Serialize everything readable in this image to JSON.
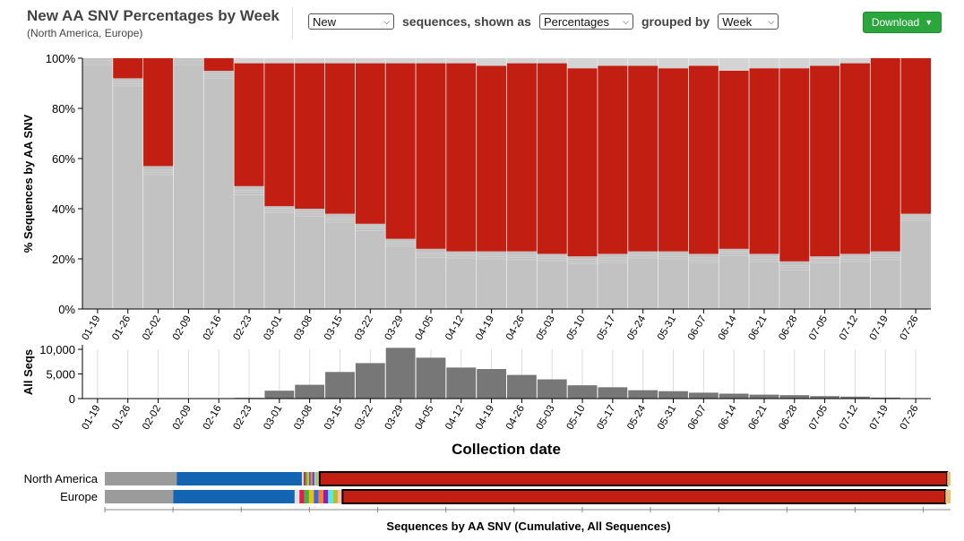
{
  "header": {
    "title": "New AA SNV Percentages by Week",
    "subtitle": "(North America, Europe)",
    "controls": {
      "mode_value": "New",
      "text1": "sequences, shown as",
      "display_value": "Percentages",
      "text2": "grouped by",
      "group_value": "Week"
    },
    "download_label": "Download"
  },
  "colors": {
    "other": "#c2c2c2",
    "snv": "#c21f12",
    "counts": "#777777",
    "lineage_grey": "#9b9b9b",
    "lineage_blue": "#1464b4"
  },
  "chart_data": [
    {
      "type": "bar",
      "stacked": true,
      "xlabel": "",
      "ylabel": "% Sequences by AA SNV",
      "ylim": [
        0,
        100
      ],
      "yticks": [
        "0%",
        "20%",
        "40%",
        "60%",
        "80%",
        "100%"
      ],
      "categories": [
        "01-19",
        "01-26",
        "02-02",
        "02-09",
        "02-16",
        "02-23",
        "03-01",
        "03-08",
        "03-15",
        "03-22",
        "03-29",
        "04-05",
        "04-12",
        "04-19",
        "04-26",
        "05-03",
        "05-10",
        "05-17",
        "05-24",
        "05-31",
        "06-07",
        "06-14",
        "06-21",
        "06-28",
        "07-05",
        "07-12",
        "07-19",
        "07-26"
      ],
      "series": [
        {
          "values": [
            100,
            92,
            57,
            100,
            95,
            49,
            41,
            40,
            38,
            34,
            28,
            24,
            23,
            23,
            23,
            22,
            21,
            22,
            23,
            23,
            22,
            24,
            22,
            19,
            21,
            22,
            23,
            38
          ]
        },
        {
          "values": [
            0,
            8,
            43,
            0,
            5,
            49,
            57,
            58,
            60,
            64,
            70,
            74,
            75,
            74,
            75,
            76,
            75,
            75,
            74,
            73,
            75,
            71,
            74,
            77,
            76,
            76,
            77,
            62
          ]
        }
      ]
    },
    {
      "type": "bar",
      "xlabel": "Collection date",
      "ylabel": "All Seqs",
      "ylim": [
        0,
        10000
      ],
      "yticks": [
        "0",
        "5,000",
        "10,000"
      ],
      "categories": [
        "01-19",
        "01-26",
        "02-02",
        "02-09",
        "02-16",
        "02-23",
        "03-01",
        "03-08",
        "03-15",
        "03-22",
        "03-29",
        "04-05",
        "04-12",
        "04-19",
        "04-26",
        "05-03",
        "05-10",
        "05-17",
        "05-24",
        "05-31",
        "06-07",
        "06-14",
        "06-21",
        "06-28",
        "07-05",
        "07-12",
        "07-19",
        "07-26"
      ],
      "values": [
        10,
        10,
        30,
        10,
        10,
        150,
        1600,
        2800,
        5400,
        7200,
        10300,
        8300,
        6300,
        6000,
        4800,
        3900,
        2700,
        2300,
        1700,
        1500,
        1200,
        1000,
        800,
        700,
        500,
        400,
        200,
        0
      ]
    },
    {
      "type": "bar",
      "stacked": true,
      "horizontal": true,
      "xlabel": "Sequences by AA SNV  (Cumulative, All Sequences)",
      "categories": [
        "North America",
        "Europe"
      ],
      "series": [
        {
          "color": "#9b9b9b",
          "values": [
            8.5,
            8.0
          ]
        },
        {
          "color": "#1464b4",
          "values": [
            14.8,
            14.2
          ]
        },
        {
          "color": "#e0e0e0",
          "values": [
            2.1,
            5.6
          ]
        },
        {
          "color": "#c21f12",
          "values": [
            74.2,
            70.5
          ]
        },
        {
          "color": "#e8c37a",
          "values": [
            0.4,
            0.6
          ]
        }
      ]
    }
  ]
}
